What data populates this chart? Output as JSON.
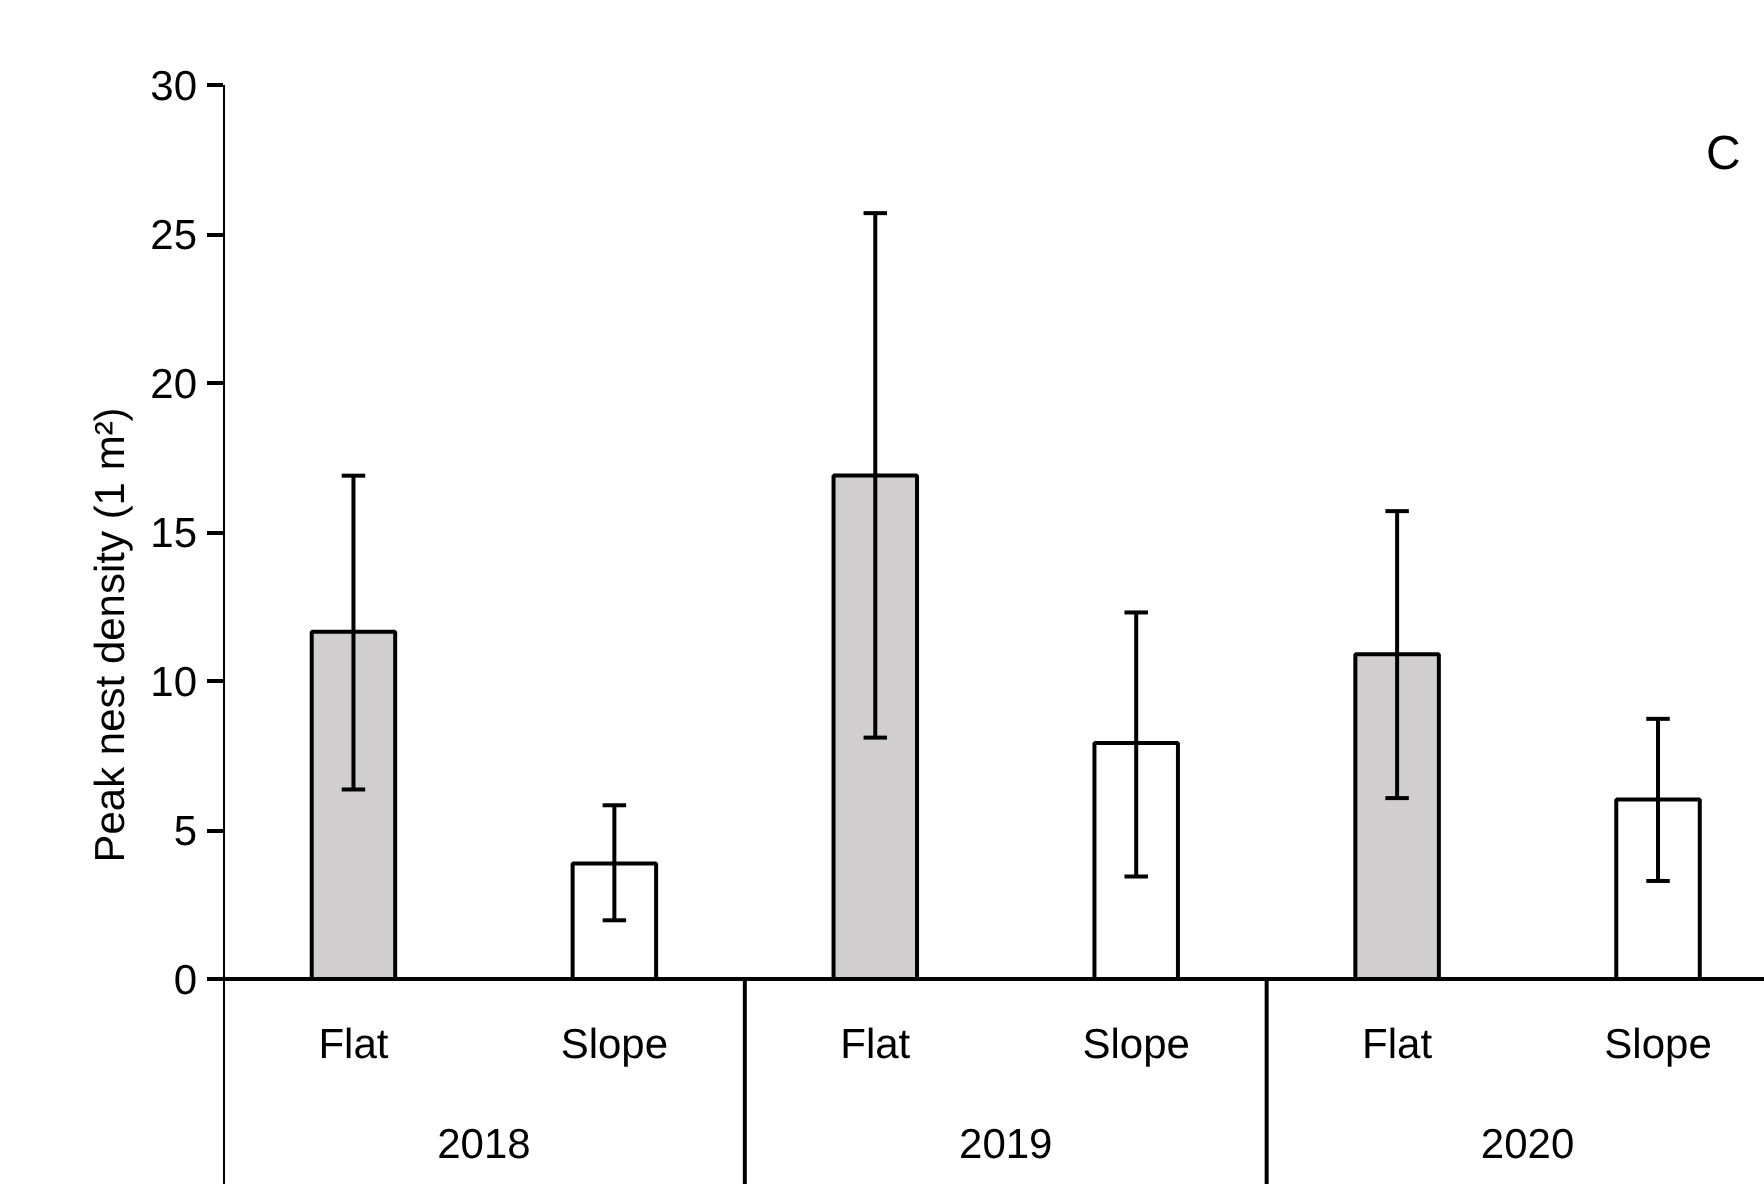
{
  "chart_data": {
    "type": "bar",
    "ylabel": "Peak nest density (1 m²)",
    "categories": [
      "Flat",
      "Slope",
      "Flat",
      "Slope",
      "Flat",
      "Slope"
    ],
    "values": [
      11.65,
      3.88,
      16.9,
      7.92,
      10.9,
      6.02
    ],
    "colors": [
      "#d0cece",
      "#ffffff",
      "#d0cece",
      "#ffffff",
      "#d0cece",
      "#ffffff"
    ],
    "errors": [
      [
        6.36,
        16.89
      ],
      [
        1.97,
        5.83
      ],
      [
        8.1,
        25.7
      ],
      [
        3.44,
        12.3
      ],
      [
        6.07,
        15.7
      ],
      [
        3.29,
        8.73
      ]
    ],
    "annotations": [
      "C",
      "2018",
      "2019",
      "2020"
    ],
    "ylim": [
      0,
      30
    ],
    "yticks": [
      0,
      5,
      10,
      15,
      20,
      25,
      30
    ],
    "grid": false
  }
}
